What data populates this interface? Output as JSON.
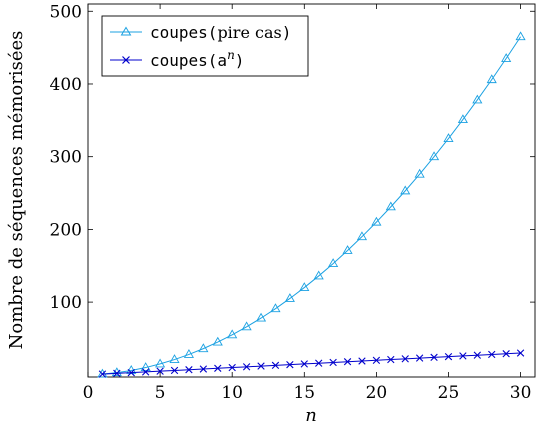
{
  "chart_data": {
    "type": "line",
    "title": "",
    "xlabel": "n",
    "ylabel": "Nombre de séquences mémorisées",
    "xlim": [
      0,
      31
    ],
    "ylim": [
      -3,
      510
    ],
    "xticks": [
      0,
      5,
      10,
      15,
      20,
      25,
      30
    ],
    "yticks": [
      100,
      200,
      300,
      400,
      500
    ],
    "grid": false,
    "legend_position": "top-left",
    "series": [
      {
        "legend_mono": "coupes(",
        "legend_roman": "pire cas",
        "legend_tail": ")",
        "color": "#1ba1e2",
        "marker": "triangle",
        "x": [
          1,
          2,
          3,
          4,
          5,
          6,
          7,
          8,
          9,
          10,
          11,
          12,
          13,
          14,
          15,
          16,
          17,
          18,
          19,
          20,
          21,
          22,
          23,
          24,
          25,
          26,
          27,
          28,
          29,
          30
        ],
        "y": [
          1,
          3,
          6,
          10,
          15,
          21,
          28,
          36,
          45,
          55,
          66,
          78,
          91,
          105,
          120,
          136,
          153,
          171,
          190,
          210,
          231,
          253,
          276,
          300,
          325,
          351,
          378,
          406,
          435,
          465
        ]
      },
      {
        "legend_mono": "coupes(a",
        "legend_sup": "n",
        "legend_tail": ")",
        "color": "#0000cc",
        "marker": "x",
        "x": [
          1,
          2,
          3,
          4,
          5,
          6,
          7,
          8,
          9,
          10,
          11,
          12,
          13,
          14,
          15,
          16,
          17,
          18,
          19,
          20,
          21,
          22,
          23,
          24,
          25,
          26,
          27,
          28,
          29,
          30
        ],
        "y": [
          1,
          2,
          3,
          4,
          5,
          6,
          7,
          8,
          9,
          10,
          11,
          12,
          13,
          14,
          15,
          16,
          17,
          18,
          19,
          20,
          21,
          22,
          23,
          24,
          25,
          26,
          27,
          28,
          29,
          30
        ]
      }
    ]
  }
}
